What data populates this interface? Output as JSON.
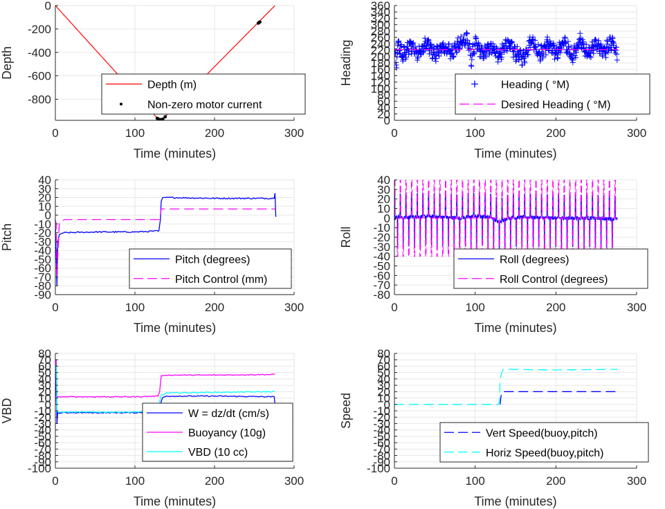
{
  "chart_data": [
    {
      "type": "line",
      "xlabel": "Time (minutes)",
      "ylabel": "Depth",
      "xlim": [
        0,
        300
      ],
      "ylim": [
        -980,
        0
      ],
      "xticks": [
        0,
        100,
        200,
        300
      ],
      "yticks": [
        -800,
        -600,
        -400,
        -200,
        0
      ],
      "grid": true,
      "legend_position": "bottom-center",
      "series": [
        {
          "name": "Depth (m)",
          "style": "solid-line",
          "color": "#ff0000",
          "x": [
            0,
            130,
            132,
            134,
            276
          ],
          "y": [
            0,
            -975,
            -978,
            -975,
            0
          ]
        },
        {
          "name": "Non-zero motor current",
          "style": "dot-markers",
          "color": "#000000",
          "x": [
            128,
            129,
            130,
            131,
            132,
            133,
            134,
            135,
            138,
            255,
            256,
            257
          ],
          "y": [
            -963,
            -968,
            -972,
            -974,
            -975,
            -975,
            -974,
            -970,
            -950,
            -150,
            -145,
            -140
          ]
        }
      ]
    },
    {
      "type": "scatter",
      "xlabel": "Time (minutes)",
      "ylabel": "Heading",
      "xlim": [
        0,
        300
      ],
      "ylim": [
        0,
        360
      ],
      "xticks": [
        0,
        100,
        200,
        300
      ],
      "yticks": [
        0,
        20,
        40,
        60,
        80,
        100,
        120,
        140,
        160,
        180,
        200,
        220,
        240,
        260,
        280,
        300,
        320,
        340,
        360
      ],
      "grid": true,
      "legend_position": "bottom-center",
      "series": [
        {
          "name": "Heading (  °M)",
          "style": "plus-markers",
          "color": "#0000ff",
          "x": [
            0,
            2,
            5,
            10,
            20,
            30,
            40,
            50,
            60,
            70,
            80,
            90,
            95,
            100,
            110,
            120,
            130,
            140,
            150,
            160,
            170,
            180,
            190,
            200,
            210,
            220,
            230,
            240,
            250,
            260,
            270,
            276
          ],
          "y": [
            220,
            170,
            240,
            200,
            235,
            210,
            240,
            205,
            230,
            215,
            235,
            260,
            190,
            240,
            205,
            235,
            200,
            245,
            210,
            195,
            255,
            205,
            240,
            210,
            245,
            200,
            250,
            205,
            240,
            215,
            245,
            200
          ],
          "y_spread": 30
        },
        {
          "name": "Desired Heading (    °M)",
          "style": "dashed-line",
          "color": "#ff00ff",
          "x": [
            0,
            276
          ],
          "y": [
            222,
            222
          ]
        }
      ]
    },
    {
      "type": "line",
      "xlabel": "Time (minutes)",
      "ylabel": "Pitch",
      "xlim": [
        0,
        300
      ],
      "ylim": [
        -90,
        40
      ],
      "xticks": [
        0,
        100,
        200,
        300
      ],
      "yticks": [
        -90,
        -80,
        -70,
        -60,
        -50,
        -40,
        -30,
        -20,
        -10,
        0,
        10,
        20,
        30,
        40
      ],
      "grid": true,
      "legend_position": "bottom-right",
      "series": [
        {
          "name": "Pitch (degrees)",
          "style": "solid-line",
          "color": "#0000ff",
          "x": [
            0,
            2,
            3,
            5,
            10,
            50,
            100,
            129,
            130,
            132,
            133,
            135,
            140,
            200,
            275,
            276,
            277
          ],
          "y": [
            -5,
            -80,
            -30,
            -22,
            -20,
            -19,
            -19,
            -18,
            -18,
            -5,
            16,
            20,
            20,
            19,
            19,
            25,
            -2
          ]
        },
        {
          "name": "Pitch Control (mm)",
          "style": "dashed-line",
          "color": "#ff00ff",
          "x": [
            0,
            1,
            2,
            5,
            12,
            129,
            131,
            133,
            276
          ],
          "y": [
            -5,
            -10,
            -70,
            -8,
            -5,
            -5,
            -5,
            7,
            7
          ]
        }
      ]
    },
    {
      "type": "line",
      "xlabel": "Time (minutes)",
      "ylabel": "Roll",
      "xlim": [
        0,
        300
      ],
      "ylim": [
        -80,
        40
      ],
      "xticks": [
        0,
        100,
        200,
        300
      ],
      "yticks": [
        -80,
        -70,
        -60,
        -50,
        -40,
        -30,
        -20,
        -10,
        0,
        10,
        20,
        30,
        40
      ],
      "grid": true,
      "legend_position": "bottom-right",
      "series": [
        {
          "name": "Roll (degrees)",
          "style": "solid-line",
          "color": "#0000ff",
          "x": [
            0,
            5,
            10,
            20,
            40,
            60,
            80,
            100,
            120,
            130,
            140,
            160,
            200,
            240,
            276
          ],
          "y": [
            0,
            2,
            0,
            1,
            2,
            1,
            0,
            2,
            1,
            -5,
            0,
            1,
            0,
            0,
            -1
          ],
          "oscillation_amplitude": 30
        },
        {
          "name": "Roll Control (degrees)",
          "style": "dashed-line",
          "color": "#ff00ff",
          "x": [
            0,
            276
          ],
          "y": [
            0,
            0
          ],
          "oscillation_range": [
            -40,
            40
          ]
        }
      ]
    },
    {
      "type": "line",
      "xlabel": "Time (minutes)",
      "ylabel": "VBD",
      "xlim": [
        0,
        300
      ],
      "ylim": [
        -100,
        80
      ],
      "xticks": [
        0,
        100,
        200,
        300
      ],
      "yticks": [
        -100,
        -90,
        -80,
        -70,
        -60,
        -50,
        -40,
        -30,
        -20,
        -10,
        0,
        10,
        20,
        30,
        40,
        50,
        60,
        70,
        80
      ],
      "grid": true,
      "legend_position": "bottom-right",
      "series": [
        {
          "name": "W = dz/dt (cm/s)",
          "style": "solid-line",
          "color": "#0000ff",
          "x": [
            0,
            1,
            2,
            3,
            5,
            10,
            50,
            100,
            129,
            131,
            133,
            135,
            140,
            200,
            275,
            276
          ],
          "y": [
            0,
            60,
            -30,
            -12,
            -14,
            -13,
            -13,
            -13,
            -12,
            -10,
            5,
            11,
            13,
            13,
            12,
            0
          ]
        },
        {
          "name": "Buoyancy (10g)",
          "style": "solid-line",
          "color": "#ff00ff",
          "x": [
            0,
            1,
            2,
            3,
            5,
            100,
            129,
            131,
            133,
            135,
            140,
            200,
            276
          ],
          "y": [
            70,
            70,
            10,
            12,
            12,
            12,
            13,
            20,
            45,
            45,
            46,
            46,
            47
          ]
        },
        {
          "name": "VBD (10 cc)",
          "style": "solid-line",
          "color": "#00ffff",
          "x": [
            0,
            1,
            2,
            3,
            5,
            100,
            129,
            131,
            133,
            135,
            140,
            200,
            276
          ],
          "y": [
            60,
            60,
            -10,
            -12,
            -12,
            -12,
            -10,
            5,
            15,
            15,
            18,
            19,
            20
          ]
        }
      ]
    },
    {
      "type": "line",
      "xlabel": "Time (minutes)",
      "ylabel": "Speed",
      "xlim": [
        0,
        300
      ],
      "ylim": [
        -100,
        80
      ],
      "xticks": [
        0,
        100,
        200,
        300
      ],
      "yticks": [
        -100,
        -90,
        -80,
        -70,
        -60,
        -50,
        -40,
        -30,
        -20,
        -10,
        0,
        10,
        20,
        30,
        40,
        50,
        60,
        70,
        80
      ],
      "grid": true,
      "legend_position": "bottom-right",
      "series": [
        {
          "name": "Vert Speed(buoy,pitch)",
          "style": "dashed-line",
          "color": "#0000ff",
          "x": [
            131,
            132,
            134,
            140,
            200,
            276
          ],
          "y": [
            0,
            13,
            20,
            20,
            20,
            20
          ]
        },
        {
          "name": "Horiz Speed(buoy,pitch)",
          "style": "dashed-line",
          "color": "#00ffff",
          "x": [
            0,
            129,
            130,
            131,
            133,
            135,
            140,
            200,
            276
          ],
          "y": [
            0,
            0,
            5,
            40,
            50,
            55,
            55,
            54,
            55
          ]
        }
      ]
    }
  ]
}
